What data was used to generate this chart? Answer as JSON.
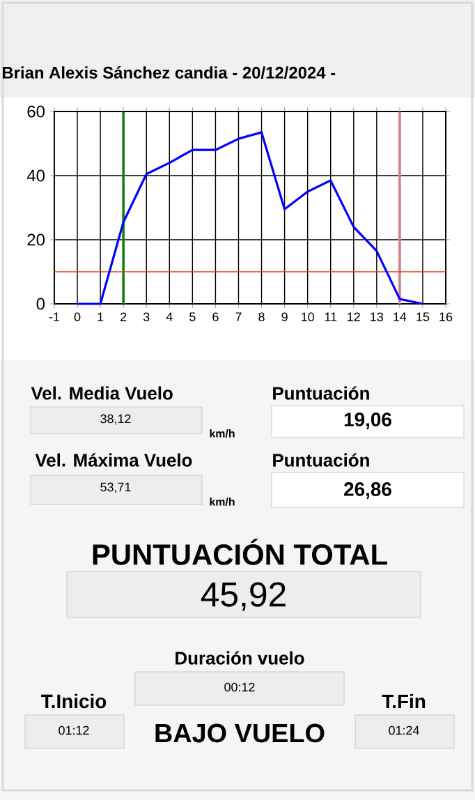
{
  "chart_data": {
    "type": "line",
    "title": "Brian Alexis Sánchez candia - 20/12/2024 -",
    "x": [
      0,
      1,
      2,
      3,
      4,
      5,
      6,
      7,
      8,
      9,
      10,
      11,
      12,
      13,
      14,
      15
    ],
    "series": [
      {
        "color": "#0000ff",
        "values": [
          0,
          0,
          25.5,
          40.5,
          44,
          48,
          48,
          51.5,
          53.5,
          29.5,
          35,
          38.5,
          24,
          16.5,
          1.5,
          0
        ]
      }
    ],
    "xlim": [
      -1,
      16
    ],
    "xticks": [
      -1,
      0,
      1,
      2,
      3,
      4,
      5,
      6,
      7,
      8,
      9,
      10,
      11,
      12,
      13,
      14,
      15,
      16
    ],
    "ylim": [
      0,
      60
    ],
    "yticks": [
      0,
      20,
      40,
      60
    ],
    "grid": true,
    "marker": "none",
    "line_style": "solid",
    "ref_lines": [
      {
        "axis": "x",
        "value": 2,
        "color": "#108010"
      },
      {
        "axis": "x",
        "value": 14,
        "color": "#d08080"
      },
      {
        "axis": "y",
        "value": 10,
        "color": "#e04010"
      }
    ],
    "annotations": [
      "Vel. Media Vuelo",
      "38,12",
      "km/h",
      "Puntuación",
      "19,06",
      "Vel. Máxima Vuelo",
      "53,71",
      "km/h",
      "Puntuación",
      "26,86",
      "PUNTUACIÓN TOTAL",
      "45,92",
      "Duración vuelo",
      "00:12",
      "T.Inicio",
      "01:12",
      "BAJO VUELO",
      "T.Fin",
      "01:24"
    ]
  }
}
